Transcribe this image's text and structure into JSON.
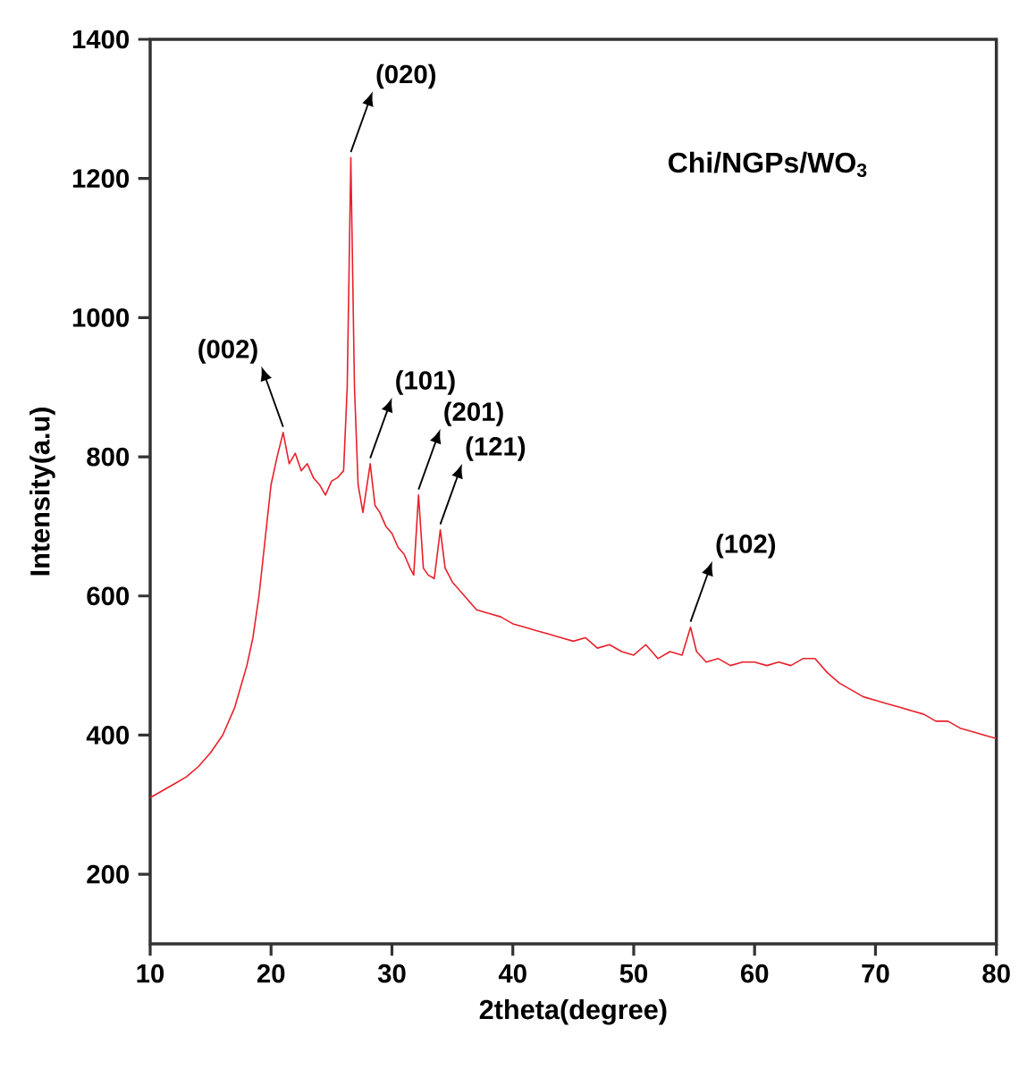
{
  "chart_data": {
    "type": "line",
    "title": "Chi/NGPs/WO$_{3}$",
    "xlabel": "2theta(degree)",
    "ylabel": "Intensity(a.u)",
    "xlim": [
      10,
      80
    ],
    "ylim": [
      100,
      1400
    ],
    "xticks": [
      10,
      20,
      30,
      40,
      50,
      60,
      70,
      80
    ],
    "yticks": [
      200,
      400,
      600,
      800,
      1000,
      1200,
      1400
    ],
    "grid": false,
    "marker": "none",
    "line_style": "solid",
    "series": [
      {
        "color": "#e8202a",
        "x": [
          10,
          11,
          12,
          13,
          14,
          15,
          16,
          17,
          18,
          18.5,
          19,
          19.5,
          20,
          20.5,
          21,
          21.5,
          22,
          22.5,
          23,
          23.5,
          24,
          24.5,
          25,
          25.5,
          26,
          26.3,
          26.6,
          26.9,
          27.2,
          27.6,
          28.2,
          28.6,
          29,
          29.5,
          30,
          30.5,
          31,
          31.5,
          31.8,
          32.2,
          32.6,
          33,
          33.5,
          34,
          34.4,
          35,
          36,
          37,
          38,
          39,
          40,
          41,
          42,
          43,
          44,
          45,
          46,
          47,
          48,
          49,
          50,
          51,
          52,
          53,
          54,
          54.7,
          55.2,
          56,
          57,
          58,
          59,
          60,
          61,
          62,
          63,
          64,
          65,
          66,
          67,
          68,
          69,
          70,
          71,
          72,
          73,
          74,
          75,
          76,
          77,
          78,
          79,
          80
        ],
        "values": [
          310,
          320,
          330,
          340,
          355,
          375,
          400,
          440,
          500,
          540,
          600,
          680,
          760,
          800,
          835,
          790,
          805,
          780,
          790,
          770,
          760,
          745,
          765,
          770,
          780,
          900,
          1230,
          900,
          760,
          720,
          790,
          730,
          720,
          700,
          690,
          670,
          660,
          640,
          630,
          745,
          640,
          630,
          625,
          695,
          640,
          620,
          600,
          580,
          575,
          570,
          560,
          555,
          550,
          545,
          540,
          535,
          540,
          525,
          530,
          520,
          515,
          530,
          510,
          520,
          515,
          555,
          520,
          505,
          510,
          500,
          505,
          505,
          500,
          505,
          500,
          510,
          510,
          490,
          475,
          465,
          455,
          450,
          445,
          440,
          435,
          430,
          420,
          420,
          410,
          405,
          400,
          395
        ]
      }
    ],
    "annotations": [
      {
        "text": "(002)",
        "x": 21,
        "y": 835
      },
      {
        "text": "(020)",
        "x": 26.6,
        "y": 1230
      },
      {
        "text": "(101)",
        "x": 28.2,
        "y": 790
      },
      {
        "text": "(201)",
        "x": 32.2,
        "y": 745
      },
      {
        "text": "(121)",
        "x": 34,
        "y": 695
      },
      {
        "text": "(102)",
        "x": 54.7,
        "y": 555
      }
    ]
  }
}
